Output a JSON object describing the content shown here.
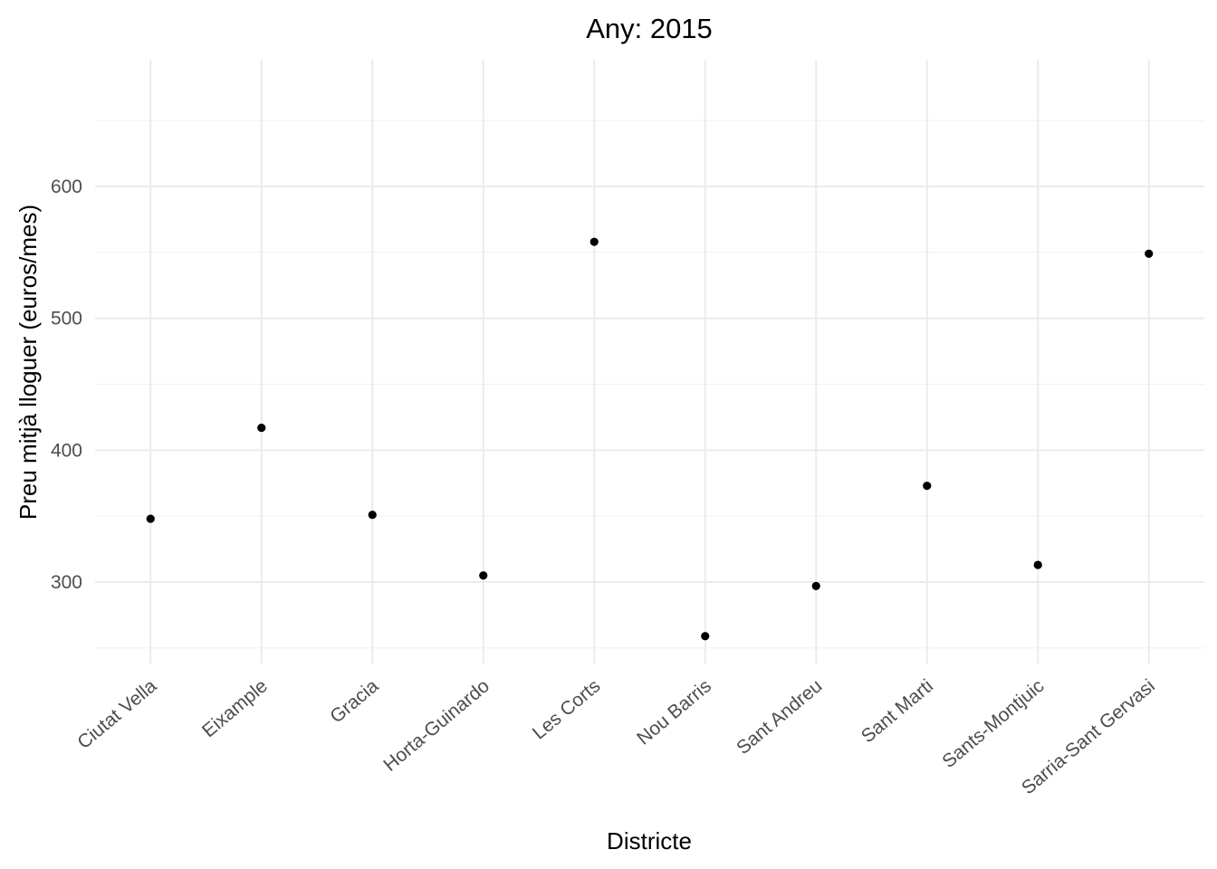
{
  "chart_data": {
    "type": "scatter",
    "title": "Any: 2015",
    "xlabel": "Districte",
    "ylabel": "Preu mitjà lloguer (euros/mes)",
    "categories": [
      "Ciutat Vella",
      "Eixample",
      "Gracia",
      "Horta-Guinardo",
      "Les Corts",
      "Nou Barris",
      "Sant Andreu",
      "Sant Marti",
      "Sants-Montjuic",
      "Sarria-Sant Gervasi"
    ],
    "series": [
      {
        "values": [
          348,
          417,
          351,
          305,
          558,
          259,
          297,
          373,
          313,
          549
        ]
      }
    ],
    "ylim": [
      235,
      680
    ],
    "yticks": [
      300,
      400,
      500,
      600
    ],
    "yticks_minor": [
      250,
      350,
      450,
      550,
      650
    ],
    "grid": true,
    "legend": "none",
    "point_color": "#000000"
  }
}
